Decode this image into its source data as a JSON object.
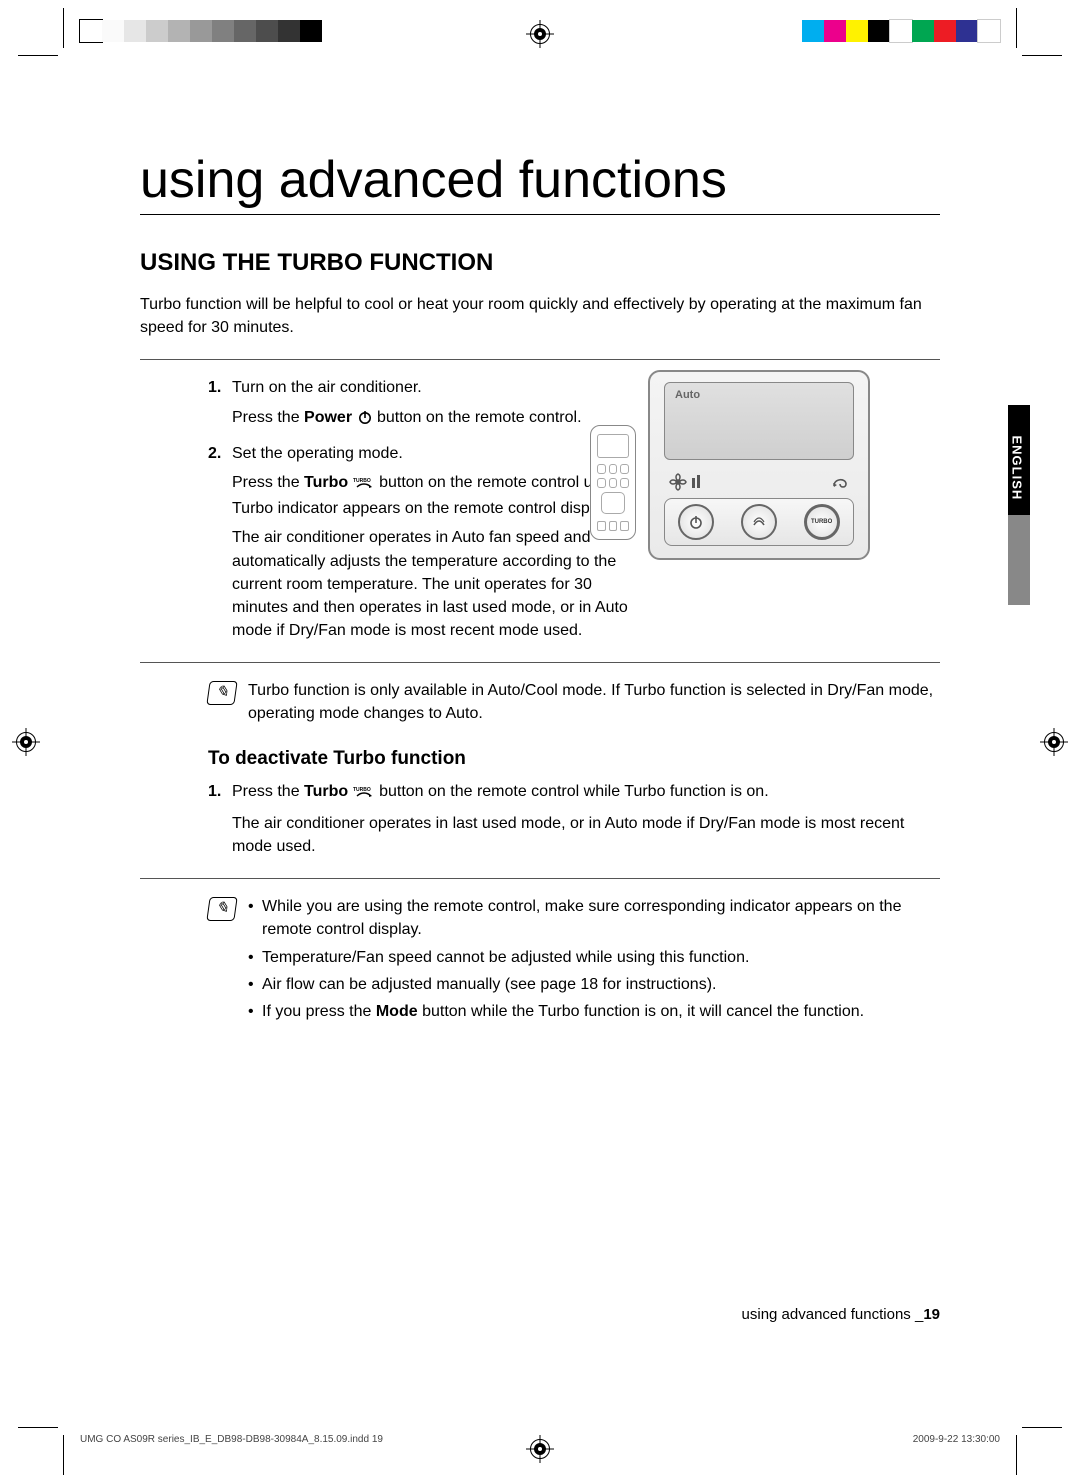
{
  "colorbars": {
    "left": [
      "#ffffff",
      "#fafafa",
      "#e6e6e6",
      "#cccccc",
      "#b3b3b3",
      "#999999",
      "#808080",
      "#666666",
      "#4d4d4d",
      "#333333",
      "#000000"
    ],
    "right": [
      "#00aeef",
      "#ec008c",
      "#fff200",
      "#000000",
      "#ffffff",
      "#00a651",
      "#ed1c24",
      "#2e3192",
      "#ffffff"
    ]
  },
  "sidetab": {
    "label": "ENGLISH"
  },
  "title": "using advanced functions",
  "section": {
    "heading": "USING THE TURBO FUNCTION",
    "intro": "Turbo function will be helpful to cool or heat your room quickly and effectively by operating at the maximum fan speed for 30 minutes.",
    "steps": [
      {
        "head": "Turn on the air conditioner.",
        "body_pre": "Press the ",
        "body_bold": "Power",
        "body_post": " button on the remote control."
      },
      {
        "head": "Set the operating mode.",
        "press_pre": "Press the ",
        "press_bold": "Turbo",
        "press_post": " button on the remote control until Turbo indicator appears on the remote control display.",
        "desc": "The air conditioner operates in Auto fan speed and automatically adjusts the temperature according to the current room temperature. The unit operates for 30 minutes and then operates in last used mode, or in Auto mode if Dry/Fan mode is most recent mode used."
      }
    ],
    "note1": "Turbo function is only available in Auto/Cool mode. If Turbo function is selected in Dry/Fan mode, operating mode changes to Auto.",
    "deactivate": {
      "heading": "To deactivate Turbo function",
      "step_pre": "Press the ",
      "step_bold": "Turbo",
      "step_post": " button on the remote control while Turbo function is on.",
      "desc": "The air conditioner operates in last used mode, or in Auto mode if Dry/Fan mode is most recent mode used."
    },
    "note2": [
      "While you are using the remote control, make sure corresponding indicator appears on the remote control display.",
      "Temperature/Fan speed cannot be adjusted while using this function.",
      "Air flow can be adjusted manually (see page 18 for instructions)."
    ],
    "note2_last_pre": "If you press the ",
    "note2_last_bold": "Mode",
    "note2_last_post": " button while the Turbo function is on, it will cancel the function."
  },
  "device": {
    "auto_label": "Auto",
    "turbo_label": "TURBO"
  },
  "footer": {
    "text_pre": "using advanced functions _",
    "page": "19"
  },
  "printline": {
    "left": "UMG CO AS09R series_IB_E_DB98-DB98-30984A_8.15.09.indd   19",
    "right": "2009-9-22   13:30:00"
  }
}
